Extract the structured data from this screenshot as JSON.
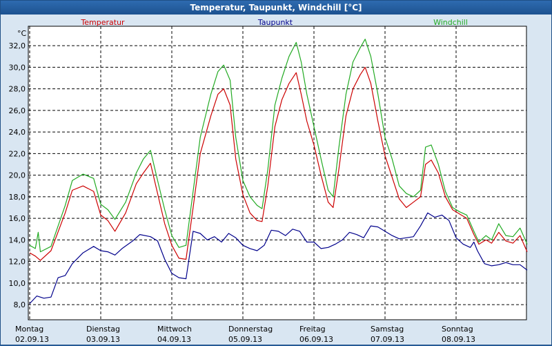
{
  "window": {
    "title": "Temperatur, Taupunkt, Windchill [°C]"
  },
  "chart_data": {
    "type": "line",
    "title": "Temperatur, Taupunkt, Windchill [°C]",
    "unit_label": "°C",
    "xlabel": "",
    "ylabel": "°C",
    "ylim": [
      6.6,
      33.8
    ],
    "xlim": [
      0,
      7
    ],
    "grid": true,
    "legend_position": "top",
    "y_ticks": [
      8,
      10,
      12,
      14,
      16,
      18,
      20,
      22,
      24,
      26,
      28,
      30,
      32
    ],
    "y_tick_labels": [
      "8,0",
      "10,0",
      "12,0",
      "14,0",
      "16,0",
      "18,0",
      "20,0",
      "22,0",
      "24,0",
      "26,0",
      "28,0",
      "30,0",
      "32,0"
    ],
    "x_ticks": [
      {
        "x": 0,
        "day": "Montag",
        "date": "02.09.13"
      },
      {
        "x": 1,
        "day": "Dienstag",
        "date": "03.09.13"
      },
      {
        "x": 2,
        "day": "Mittwoch",
        "date": "04.09.13"
      },
      {
        "x": 3,
        "day": "Donnerstag",
        "date": "05.09.13"
      },
      {
        "x": 4,
        "day": "Freitag",
        "date": "06.09.13"
      },
      {
        "x": 5,
        "day": "Samstag",
        "date": "07.09.13"
      },
      {
        "x": 6,
        "day": "Sonntag",
        "date": "08.09.13"
      }
    ],
    "series": [
      {
        "name": "Temperatur",
        "color": "#cc0000",
        "points": [
          [
            0,
            12.8
          ],
          [
            0.08,
            12.5
          ],
          [
            0.15,
            12.1
          ],
          [
            0.3,
            13.0
          ],
          [
            0.5,
            16.5
          ],
          [
            0.6,
            18.6
          ],
          [
            0.75,
            19.0
          ],
          [
            0.9,
            18.5
          ],
          [
            1.0,
            16.3
          ],
          [
            1.1,
            15.8
          ],
          [
            1.2,
            14.8
          ],
          [
            1.35,
            16.5
          ],
          [
            1.5,
            19.2
          ],
          [
            1.6,
            20.2
          ],
          [
            1.7,
            21.1
          ],
          [
            1.8,
            18.3
          ],
          [
            1.9,
            15.5
          ],
          [
            2.0,
            13.5
          ],
          [
            2.1,
            12.3
          ],
          [
            2.2,
            12.2
          ],
          [
            2.3,
            17.0
          ],
          [
            2.4,
            22.0
          ],
          [
            2.55,
            25.5
          ],
          [
            2.65,
            27.5
          ],
          [
            2.73,
            28.0
          ],
          [
            2.82,
            26.5
          ],
          [
            2.9,
            21.5
          ],
          [
            3.0,
            18.2
          ],
          [
            3.1,
            16.5
          ],
          [
            3.2,
            15.8
          ],
          [
            3.27,
            15.7
          ],
          [
            3.35,
            19.0
          ],
          [
            3.45,
            24.5
          ],
          [
            3.55,
            27.0
          ],
          [
            3.65,
            28.5
          ],
          [
            3.75,
            29.5
          ],
          [
            3.82,
            27.5
          ],
          [
            3.9,
            25.0
          ],
          [
            4.0,
            22.8
          ],
          [
            4.1,
            20.0
          ],
          [
            4.2,
            17.5
          ],
          [
            4.27,
            17.0
          ],
          [
            4.35,
            20.5
          ],
          [
            4.45,
            25.5
          ],
          [
            4.55,
            28.0
          ],
          [
            4.65,
            29.3
          ],
          [
            4.72,
            30.0
          ],
          [
            4.8,
            28.5
          ],
          [
            4.9,
            25.0
          ],
          [
            5.0,
            21.8
          ],
          [
            5.1,
            19.8
          ],
          [
            5.2,
            17.8
          ],
          [
            5.3,
            17.0
          ],
          [
            5.4,
            17.5
          ],
          [
            5.5,
            18.0
          ],
          [
            5.57,
            21.0
          ],
          [
            5.65,
            21.4
          ],
          [
            5.75,
            20.2
          ],
          [
            5.85,
            18.0
          ],
          [
            5.95,
            16.8
          ],
          [
            6.05,
            16.4
          ],
          [
            6.15,
            16.0
          ],
          [
            6.25,
            14.5
          ],
          [
            6.32,
            13.6
          ],
          [
            6.42,
            14.0
          ],
          [
            6.5,
            13.7
          ],
          [
            6.6,
            14.7
          ],
          [
            6.7,
            13.9
          ],
          [
            6.8,
            13.7
          ],
          [
            6.9,
            14.4
          ],
          [
            7.0,
            12.9
          ]
        ]
      },
      {
        "name": "Taupunkt",
        "color": "#00008b",
        "points": [
          [
            0,
            8.1
          ],
          [
            0.1,
            8.8
          ],
          [
            0.2,
            8.6
          ],
          [
            0.3,
            8.7
          ],
          [
            0.4,
            10.5
          ],
          [
            0.5,
            10.7
          ],
          [
            0.6,
            11.8
          ],
          [
            0.75,
            12.8
          ],
          [
            0.9,
            13.4
          ],
          [
            1.0,
            13.0
          ],
          [
            1.1,
            12.9
          ],
          [
            1.2,
            12.6
          ],
          [
            1.3,
            13.2
          ],
          [
            1.45,
            13.9
          ],
          [
            1.55,
            14.5
          ],
          [
            1.7,
            14.3
          ],
          [
            1.8,
            13.9
          ],
          [
            1.9,
            12.2
          ],
          [
            2.0,
            10.9
          ],
          [
            2.1,
            10.5
          ],
          [
            2.2,
            10.4
          ],
          [
            2.3,
            14.8
          ],
          [
            2.4,
            14.6
          ],
          [
            2.5,
            14.0
          ],
          [
            2.6,
            14.3
          ],
          [
            2.7,
            13.8
          ],
          [
            2.8,
            14.6
          ],
          [
            2.9,
            14.2
          ],
          [
            3.0,
            13.5
          ],
          [
            3.1,
            13.2
          ],
          [
            3.2,
            13.0
          ],
          [
            3.3,
            13.5
          ],
          [
            3.4,
            14.9
          ],
          [
            3.5,
            14.8
          ],
          [
            3.6,
            14.4
          ],
          [
            3.7,
            15.0
          ],
          [
            3.8,
            14.8
          ],
          [
            3.9,
            13.8
          ],
          [
            4.0,
            13.8
          ],
          [
            4.1,
            13.2
          ],
          [
            4.2,
            13.3
          ],
          [
            4.3,
            13.6
          ],
          [
            4.4,
            14.0
          ],
          [
            4.5,
            14.7
          ],
          [
            4.6,
            14.5
          ],
          [
            4.7,
            14.2
          ],
          [
            4.8,
            15.3
          ],
          [
            4.9,
            15.2
          ],
          [
            5.0,
            14.8
          ],
          [
            5.1,
            14.4
          ],
          [
            5.2,
            14.1
          ],
          [
            5.3,
            14.2
          ],
          [
            5.4,
            14.3
          ],
          [
            5.5,
            15.3
          ],
          [
            5.6,
            16.5
          ],
          [
            5.7,
            16.1
          ],
          [
            5.8,
            16.3
          ],
          [
            5.9,
            15.8
          ],
          [
            6.0,
            14.2
          ],
          [
            6.1,
            13.6
          ],
          [
            6.2,
            13.3
          ],
          [
            6.25,
            13.8
          ],
          [
            6.3,
            13.0
          ],
          [
            6.4,
            11.8
          ],
          [
            6.5,
            11.6
          ],
          [
            6.6,
            11.7
          ],
          [
            6.7,
            11.9
          ],
          [
            6.8,
            11.7
          ],
          [
            6.9,
            11.7
          ],
          [
            7.0,
            11.2
          ]
        ]
      },
      {
        "name": "Windchill",
        "color": "#22aa22",
        "points": [
          [
            0,
            13.5
          ],
          [
            0.08,
            13.2
          ],
          [
            0.12,
            14.7
          ],
          [
            0.15,
            12.9
          ],
          [
            0.3,
            13.4
          ],
          [
            0.5,
            17.2
          ],
          [
            0.6,
            19.5
          ],
          [
            0.75,
            20.1
          ],
          [
            0.9,
            19.7
          ],
          [
            1.0,
            17.3
          ],
          [
            1.1,
            16.8
          ],
          [
            1.2,
            15.9
          ],
          [
            1.35,
            17.5
          ],
          [
            1.5,
            20.2
          ],
          [
            1.6,
            21.5
          ],
          [
            1.7,
            22.3
          ],
          [
            1.8,
            19.5
          ],
          [
            1.9,
            16.8
          ],
          [
            2.0,
            14.4
          ],
          [
            2.1,
            13.3
          ],
          [
            2.2,
            13.5
          ],
          [
            2.3,
            18.5
          ],
          [
            2.4,
            23.5
          ],
          [
            2.55,
            27.5
          ],
          [
            2.65,
            29.6
          ],
          [
            2.73,
            30.2
          ],
          [
            2.82,
            28.8
          ],
          [
            2.9,
            23.5
          ],
          [
            3.0,
            19.5
          ],
          [
            3.1,
            18.0
          ],
          [
            3.2,
            17.2
          ],
          [
            3.27,
            16.9
          ],
          [
            3.35,
            20.5
          ],
          [
            3.45,
            26.5
          ],
          [
            3.55,
            29.0
          ],
          [
            3.65,
            31.0
          ],
          [
            3.75,
            32.3
          ],
          [
            3.82,
            30.5
          ],
          [
            3.9,
            27.5
          ],
          [
            4.0,
            24.5
          ],
          [
            4.1,
            21.5
          ],
          [
            4.2,
            18.6
          ],
          [
            4.27,
            18.0
          ],
          [
            4.35,
            22.5
          ],
          [
            4.45,
            27.5
          ],
          [
            4.55,
            30.5
          ],
          [
            4.65,
            31.8
          ],
          [
            4.72,
            32.6
          ],
          [
            4.8,
            31.0
          ],
          [
            4.9,
            27.5
          ],
          [
            5.0,
            23.5
          ],
          [
            5.1,
            21.5
          ],
          [
            5.2,
            19.0
          ],
          [
            5.3,
            18.3
          ],
          [
            5.4,
            18.0
          ],
          [
            5.5,
            18.6
          ],
          [
            5.57,
            22.6
          ],
          [
            5.65,
            22.8
          ],
          [
            5.75,
            21.0
          ],
          [
            5.85,
            18.5
          ],
          [
            5.95,
            17.0
          ],
          [
            6.05,
            16.6
          ],
          [
            6.15,
            16.3
          ],
          [
            6.25,
            14.8
          ],
          [
            6.32,
            13.8
          ],
          [
            6.42,
            14.4
          ],
          [
            6.5,
            14.0
          ],
          [
            6.6,
            15.5
          ],
          [
            6.7,
            14.4
          ],
          [
            6.8,
            14.3
          ],
          [
            6.9,
            15.1
          ],
          [
            7.0,
            13.6
          ]
        ]
      }
    ]
  }
}
